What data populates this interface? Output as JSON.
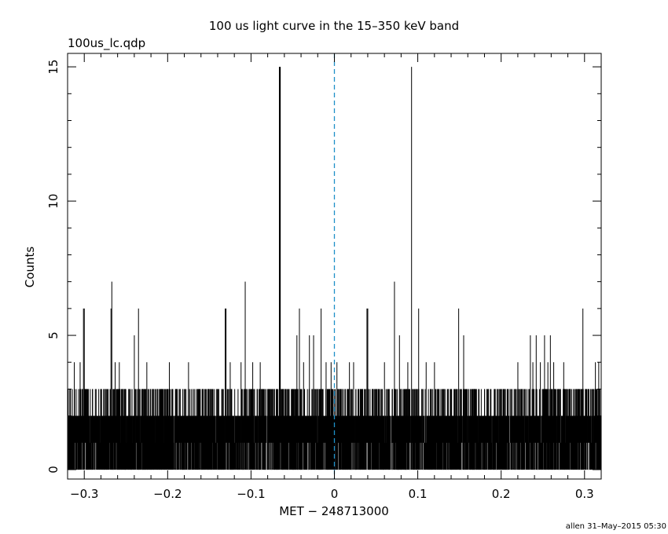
{
  "chart_data": {
    "type": "bar",
    "title": "100 us light curve in the 15–350 keV band",
    "subtitle": "100us_lc.qdp",
    "xlabel": "MET − 248713000",
    "ylabel": "Counts",
    "xlim": [
      -0.32,
      0.32
    ],
    "ylim": [
      -0.35,
      15.5
    ],
    "xticks": [
      -0.3,
      -0.2,
      -0.1,
      0,
      0.1,
      0.2,
      0.3
    ],
    "xtick_labels": [
      "−0.3",
      "−0.2",
      "−0.1",
      "0",
      "0.1",
      "0.2",
      "0.3"
    ],
    "yticks": [
      0,
      5,
      10,
      15
    ],
    "ytick_labels": [
      "0",
      "5",
      "10",
      "15"
    ],
    "bin_width": 0.0001,
    "baseline_level": 1,
    "trigger_line_x": 0,
    "notable_bins": [
      {
        "x": -0.0655,
        "y": 15
      },
      {
        "x": 0.0925,
        "y": 15
      },
      {
        "x": -0.267,
        "y": 7
      },
      {
        "x": -0.107,
        "y": 7
      },
      {
        "x": 0.072,
        "y": 7
      },
      {
        "x": -0.301,
        "y": 6
      },
      {
        "x": -0.3,
        "y": 6
      },
      {
        "x": -0.268,
        "y": 6
      },
      {
        "x": -0.235,
        "y": 6
      },
      {
        "x": -0.131,
        "y": 6
      },
      {
        "x": -0.13,
        "y": 6
      },
      {
        "x": -0.042,
        "y": 6
      },
      {
        "x": -0.016,
        "y": 6
      },
      {
        "x": 0.039,
        "y": 6
      },
      {
        "x": 0.04,
        "y": 6
      },
      {
        "x": 0.101,
        "y": 6
      },
      {
        "x": 0.149,
        "y": 6
      },
      {
        "x": 0.298,
        "y": 6
      },
      {
        "x": -0.312,
        "y": 4
      },
      {
        "x": -0.305,
        "y": 4
      },
      {
        "x": -0.263,
        "y": 4
      },
      {
        "x": -0.258,
        "y": 4
      },
      {
        "x": -0.24,
        "y": 5
      },
      {
        "x": -0.225,
        "y": 4
      },
      {
        "x": -0.198,
        "y": 4
      },
      {
        "x": -0.175,
        "y": 4
      },
      {
        "x": -0.125,
        "y": 4
      },
      {
        "x": -0.112,
        "y": 4
      },
      {
        "x": -0.098,
        "y": 4
      },
      {
        "x": -0.089,
        "y": 4
      },
      {
        "x": -0.045,
        "y": 5
      },
      {
        "x": -0.037,
        "y": 4
      },
      {
        "x": -0.03,
        "y": 5
      },
      {
        "x": -0.025,
        "y": 5
      },
      {
        "x": -0.01,
        "y": 4
      },
      {
        "x": -0.004,
        "y": 4
      },
      {
        "x": 0.003,
        "y": 4
      },
      {
        "x": 0.018,
        "y": 4
      },
      {
        "x": 0.023,
        "y": 4
      },
      {
        "x": 0.06,
        "y": 4
      },
      {
        "x": 0.078,
        "y": 5
      },
      {
        "x": 0.088,
        "y": 4
      },
      {
        "x": 0.11,
        "y": 4
      },
      {
        "x": 0.12,
        "y": 4
      },
      {
        "x": 0.155,
        "y": 5
      },
      {
        "x": 0.22,
        "y": 4
      },
      {
        "x": 0.235,
        "y": 5
      },
      {
        "x": 0.238,
        "y": 4
      },
      {
        "x": 0.242,
        "y": 5
      },
      {
        "x": 0.247,
        "y": 4
      },
      {
        "x": 0.252,
        "y": 5
      },
      {
        "x": 0.256,
        "y": 4
      },
      {
        "x": 0.259,
        "y": 5
      },
      {
        "x": 0.263,
        "y": 4
      },
      {
        "x": 0.275,
        "y": 4
      },
      {
        "x": 0.313,
        "y": 4
      },
      {
        "x": 0.317,
        "y": 4
      }
    ],
    "gaps_to_zero": [
      -0.075,
      -0.074,
      0.001
    ]
  },
  "footer": {
    "credit": "allen 31–May–2015 05:30"
  },
  "colors": {
    "background": "#ffffff",
    "foreground": "#000000",
    "trigger_line": "#1e90c8"
  }
}
